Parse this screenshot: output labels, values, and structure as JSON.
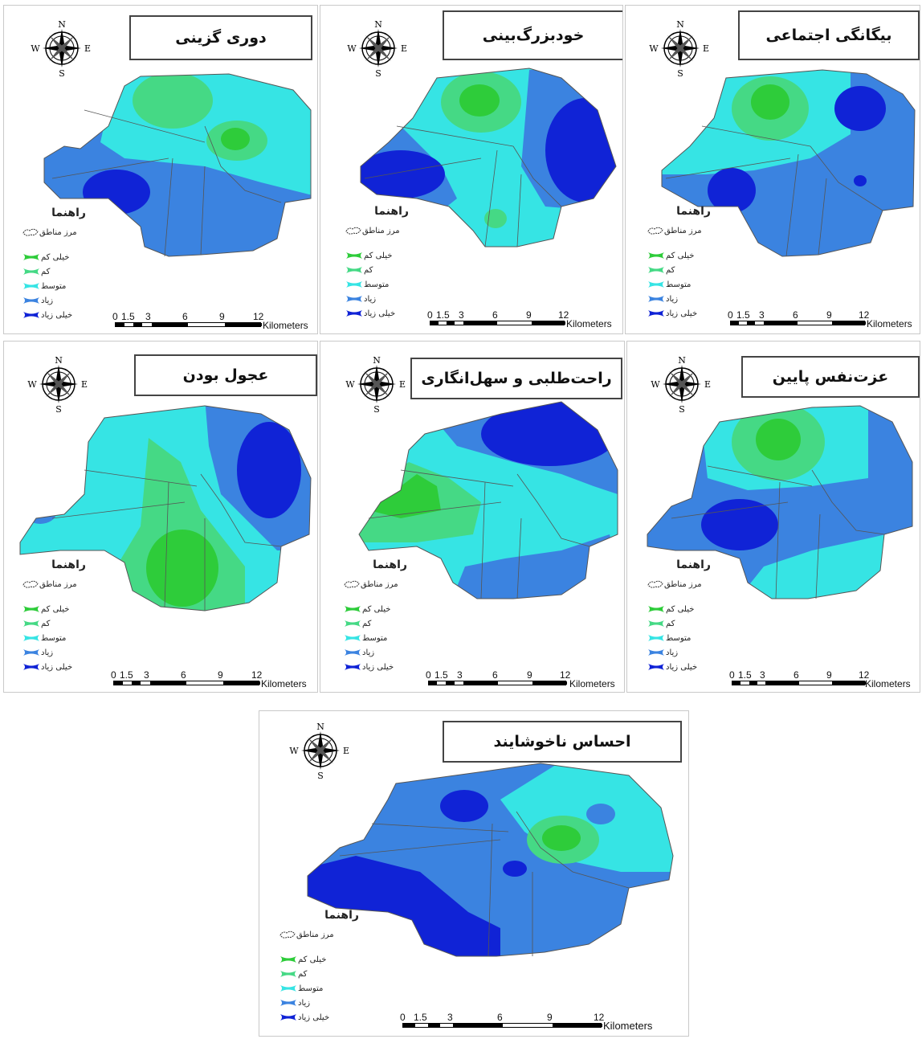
{
  "legend": {
    "title": "راهنما",
    "boundary_label": "مرز مناطق",
    "classes": [
      {
        "label": "خیلی کم",
        "color": "#2ecc3a"
      },
      {
        "label": "کم",
        "color": "#45d985"
      },
      {
        "label": "متوسط",
        "color": "#36e4e4"
      },
      {
        "label": "زیاد",
        "color": "#3b83e0"
      },
      {
        "label": "خیلی زیاد",
        "color": "#1023d6"
      }
    ]
  },
  "compass": {
    "n": "N",
    "s": "S",
    "e": "E",
    "w": "W"
  },
  "scale": {
    "ticks": [
      "0",
      "1.5",
      "3",
      "6",
      "9",
      "12"
    ],
    "unit": "Kilometers"
  },
  "maps": [
    {
      "title": "دوری گزینی"
    },
    {
      "title": "خودبزرگ‌بینی"
    },
    {
      "title": "بیگانگی اجتماعی"
    },
    {
      "title": "عجول بودن"
    },
    {
      "title": "راحت‌طلبی و سهل‌انگاری"
    },
    {
      "title": "عزت‌نفس پایین"
    },
    {
      "title": "احساس ناخوشایند"
    }
  ]
}
